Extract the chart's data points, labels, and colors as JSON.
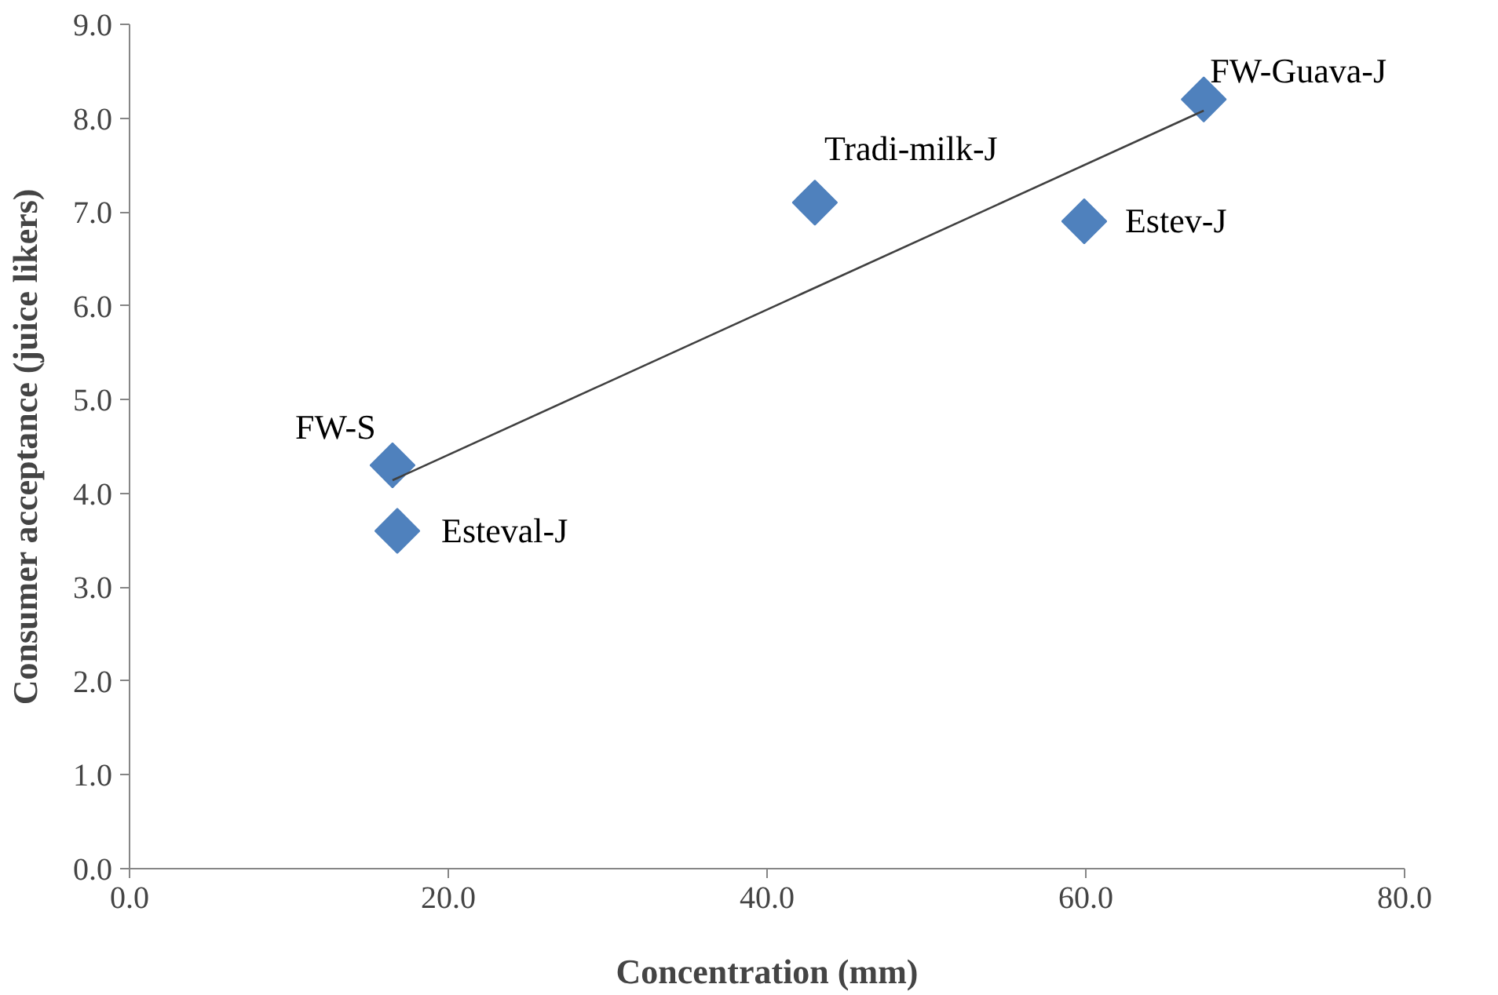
{
  "chart_data": {
    "type": "scatter",
    "xlabel": "Concentration (mm)",
    "ylabel": "Consumer acceptance (juice likers)",
    "xlim": [
      0,
      80
    ],
    "ylim": [
      0,
      9
    ],
    "xticks": [
      {
        "value": 0,
        "label": "0.0"
      },
      {
        "value": 20,
        "label": "20.0"
      },
      {
        "value": 40,
        "label": "40.0"
      },
      {
        "value": 60,
        "label": "60.0"
      },
      {
        "value": 80,
        "label": "80.0"
      }
    ],
    "yticks": [
      {
        "value": 0,
        "label": "0.0"
      },
      {
        "value": 1,
        "label": "1.0"
      },
      {
        "value": 2,
        "label": "2.0"
      },
      {
        "value": 3,
        "label": "3.0"
      },
      {
        "value": 4,
        "label": "4.0"
      },
      {
        "value": 5,
        "label": "5.0"
      },
      {
        "value": 6,
        "label": "6.0"
      },
      {
        "value": 7,
        "label": "7.0"
      },
      {
        "value": 8,
        "label": "8.0"
      },
      {
        "value": 9,
        "label": "9.0"
      }
    ],
    "grid": false,
    "marker": "diamond",
    "series": [
      {
        "color": "#4f81bd",
        "x": [
          16.5,
          16.8,
          43.0,
          59.9,
          67.4
        ],
        "values": [
          4.3,
          3.6,
          7.1,
          6.9,
          8.2
        ]
      },
      {
        "type": "line",
        "color": "#404040",
        "marker": "none",
        "line_style": "solid",
        "x": [
          16.5,
          67.4
        ],
        "values": [
          4.14,
          8.08
        ]
      }
    ],
    "annotations": [
      {
        "text": "FW-S",
        "x": 16.5,
        "y": 4.3
      },
      {
        "text": "Esteval-J",
        "x": 16.8,
        "y": 3.6
      },
      {
        "text": "Tradi-milk-J",
        "x": 43.0,
        "y": 7.1
      },
      {
        "text": "Estev-J",
        "x": 59.9,
        "y": 6.9
      },
      {
        "text": "FW-Guava-J",
        "x": 67.4,
        "y": 8.2
      }
    ]
  }
}
